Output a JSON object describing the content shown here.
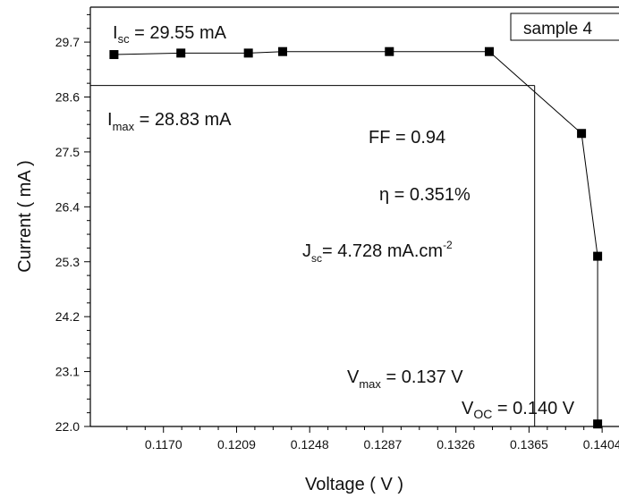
{
  "chart_data": {
    "type": "line",
    "title": "",
    "xlabel": "Voltage ( V )",
    "ylabel": "Current ( mA )",
    "xlim": [
      0.1131,
      0.1413
    ],
    "ylim": [
      22.0,
      30.4
    ],
    "xticks": [
      0.117,
      0.1209,
      0.1248,
      0.1287,
      0.1326,
      0.1365,
      0.1404
    ],
    "xtick_labels": [
      "0.1170",
      "0.1209",
      "0.1248",
      "0.1287",
      "0.1326",
      "0.1365",
      "0.1404"
    ],
    "yticks": [
      22.0,
      23.1,
      24.2,
      25.3,
      26.4,
      27.5,
      28.6,
      29.7
    ],
    "ytick_labels": [
      "22.0",
      "23.1",
      "24.2",
      "25.3",
      "26.4",
      "27.5",
      "28.6",
      "29.7"
    ],
    "series": [
      {
        "name": "",
        "color": "#000000",
        "marker": "square",
        "x": [
          0.11436,
          0.11793,
          0.12153,
          0.12336,
          0.12905,
          0.13438,
          0.1393,
          0.14016,
          0.14016
        ],
        "y": [
          29.45,
          29.48,
          29.48,
          29.51,
          29.51,
          29.51,
          27.87,
          25.41,
          22.05
        ]
      }
    ],
    "reference_lines": {
      "horizontal_y": 28.83,
      "vertical_x": 0.1368
    },
    "legend": {
      "label": "sample 4",
      "position": "top-right"
    },
    "annotations": {
      "isc_prefix": "I",
      "isc_sub": "sc",
      "isc_value": " = 29.55 mA",
      "imax_prefix": "I",
      "imax_sub": "max",
      "imax_value": " = 28.83 mA",
      "ff": "FF = 0.94",
      "eta": "η = 0.351%",
      "jsc_prefix": "J",
      "jsc_sub": "sc",
      "jsc_value": "= 4.728 mA.cm",
      "jsc_sup": "-2",
      "vmax_prefix": "V",
      "vmax_sub": "max",
      "vmax_value": " = 0.137 V",
      "voc_prefix": "V",
      "voc_sub": "OC",
      "voc_value": " = 0.140 V"
    },
    "grid": false
  }
}
